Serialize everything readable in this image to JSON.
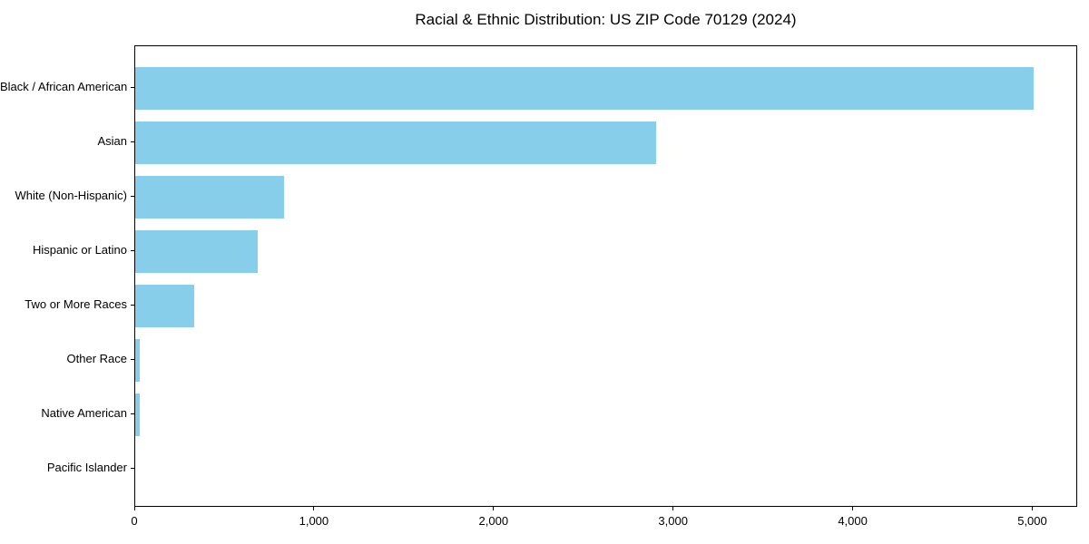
{
  "chart_data": {
    "type": "bar",
    "orientation": "horizontal",
    "title": "Racial & Ethnic Distribution: US ZIP Code 70129 (2024)",
    "categories": [
      "Black / African American",
      "Asian",
      "White (Non-Hispanic)",
      "Hispanic or Latino",
      "Two or More Races",
      "Other Race",
      "Native American",
      "Pacific Islander"
    ],
    "values": [
      5000,
      2900,
      830,
      680,
      330,
      25,
      25,
      0
    ],
    "xlabel": "",
    "ylabel": "",
    "xlim": [
      0,
      5250
    ],
    "x_ticks": [
      0,
      1000,
      2000,
      3000,
      4000,
      5000
    ],
    "x_tick_labels": [
      "0",
      "1,000",
      "2,000",
      "3,000",
      "4,000",
      "5,000"
    ],
    "bar_color": "#87CEEB",
    "text_color": "#000000",
    "grid": false,
    "legend": null
  }
}
